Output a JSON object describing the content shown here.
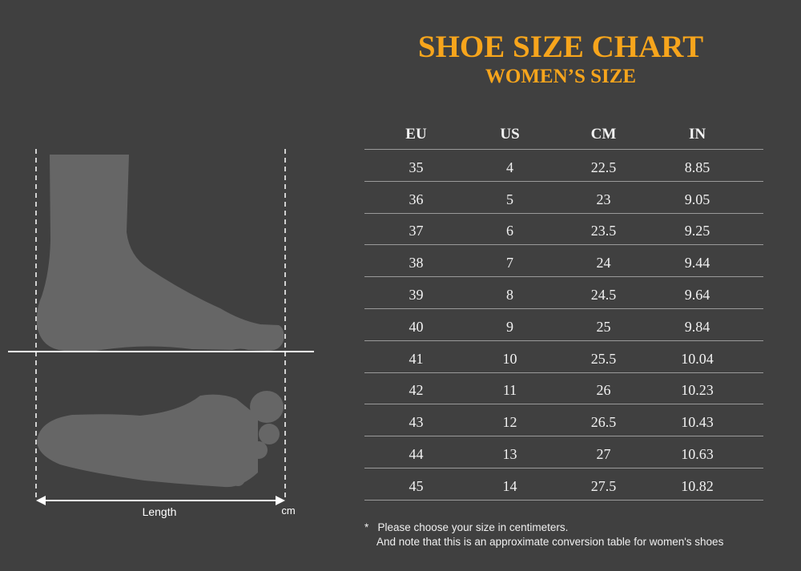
{
  "title": "SHOE SIZE CHART",
  "subtitle": "WOMEN’S SIZE",
  "colors": {
    "accent": "#f7a51c",
    "background": "#404040",
    "foot": "#666666"
  },
  "diagram": {
    "length_label": "Length",
    "unit_label": "cm"
  },
  "chart_data": {
    "type": "table",
    "title": "SHOE SIZE CHART",
    "subtitle": "WOMEN’S SIZE",
    "columns": [
      "EU",
      "US",
      "CM",
      "IN"
    ],
    "rows": [
      [
        "35",
        "4",
        "22.5",
        "8.85"
      ],
      [
        "36",
        "5",
        "23",
        "9.05"
      ],
      [
        "37",
        "6",
        "23.5",
        "9.25"
      ],
      [
        "38",
        "7",
        "24",
        "9.44"
      ],
      [
        "39",
        "8",
        "24.5",
        "9.64"
      ],
      [
        "40",
        "9",
        "25",
        "9.84"
      ],
      [
        "41",
        "10",
        "25.5",
        "10.04"
      ],
      [
        "42",
        "11",
        "26",
        "10.23"
      ],
      [
        "43",
        "12",
        "26.5",
        "10.43"
      ],
      [
        "44",
        "13",
        "27",
        "10.63"
      ],
      [
        "45",
        "14",
        "27.5",
        "10.82"
      ]
    ]
  },
  "note": {
    "line1": "*   Please choose your size in centimeters.",
    "line2": "And note that this is an approximate conversion table for women's shoes"
  }
}
